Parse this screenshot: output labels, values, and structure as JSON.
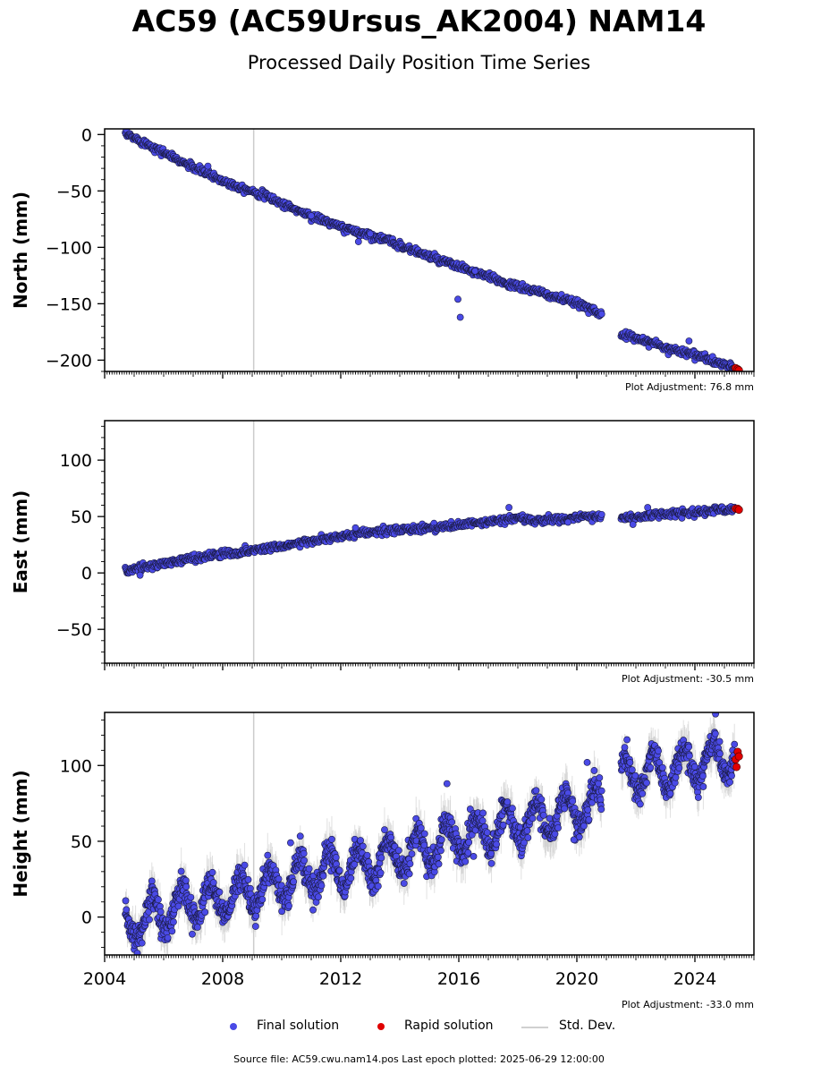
{
  "title": "AC59 (AC59Ursus_AK2004) NAM14",
  "subtitle": "Processed Daily Position Time Series",
  "legend": {
    "final": "Final solution",
    "rapid": "Rapid solution",
    "std": "Std. Dev."
  },
  "source_line": "Source file: AC59.cwu.nam14.pos  Last epoch plotted: 2025-06-29 12:00:00",
  "colors": {
    "final": "#4a4ae6",
    "rapid": "#e00000",
    "std": "#c8c8c8",
    "event_line": "#cccccc"
  },
  "chart_data": [
    {
      "type": "scatter",
      "ylabel": "North (mm)",
      "adjustment": "Plot Adjustment: 76.8 mm",
      "xlim": [
        2004.0,
        2026.0
      ],
      "ylim": [
        -210,
        5
      ],
      "yticks": [
        0,
        -50,
        -100,
        -150,
        -200
      ],
      "xticks": [
        2004,
        2008,
        2012,
        2016,
        2020,
        2024
      ],
      "show_xtick_labels": false,
      "event_lines": [
        2009.05
      ],
      "series": [
        {
          "name": "Final solution",
          "segments": [
            {
              "x": [
                2004.7,
                2005.0,
                2005.5,
                2006.0,
                2006.5,
                2007.0,
                2007.5,
                2008.0,
                2008.5,
                2009.0,
                2009.5,
                2010.0,
                2010.5,
                2011.0,
                2011.5,
                2012.0,
                2012.5,
                2013.0,
                2013.5,
                2014.0,
                2014.5,
                2015.0,
                2015.5,
                2016.0,
                2016.5,
                2017.0,
                2017.5,
                2018.0,
                2018.5,
                2019.0,
                2019.5,
                2020.0,
                2020.5,
                2020.85
              ],
              "y": [
                0,
                -3,
                -9,
                -16,
                -23,
                -29,
                -35,
                -41,
                -46,
                -50,
                -55,
                -61,
                -67,
                -72,
                -77,
                -82,
                -86,
                -89,
                -93,
                -98,
                -103,
                -108,
                -113,
                -117,
                -122,
                -126,
                -131,
                -135,
                -138,
                -142,
                -146,
                -150,
                -154,
                -160
              ]
            },
            {
              "x": [
                2021.5,
                2022.0,
                2022.5,
                2023.0,
                2023.5,
                2024.0,
                2024.5,
                2025.0,
                2025.35
              ],
              "y": [
                -178,
                -180,
                -184,
                -189,
                -192,
                -195,
                -200,
                -204,
                -207
              ]
            }
          ],
          "outliers": [
            [
              2015.97,
              -146
            ],
            [
              2016.05,
              -162
            ],
            [
              2016.55,
              -121
            ],
            [
              2013.0,
              -88
            ],
            [
              2012.6,
              -95
            ],
            [
              2023.8,
              -183
            ],
            [
              2007.5,
              -28
            ],
            [
              2011.0,
              -72
            ]
          ]
        },
        {
          "name": "Rapid solution",
          "x": [
            2025.38,
            2025.45,
            2025.49
          ],
          "y": [
            -207,
            -208,
            -209
          ]
        }
      ]
    },
    {
      "type": "scatter",
      "ylabel": "East (mm)",
      "adjustment": "Plot Adjustment: -30.5 mm",
      "xlim": [
        2004.0,
        2026.0
      ],
      "ylim": [
        -80,
        135
      ],
      "yticks": [
        100,
        50,
        0,
        -50
      ],
      "xticks": [
        2004,
        2008,
        2012,
        2016,
        2020,
        2024
      ],
      "show_xtick_labels": false,
      "event_lines": [
        2009.05
      ],
      "series": [
        {
          "name": "Final solution",
          "segments": [
            {
              "x": [
                2004.7,
                2005.0,
                2005.5,
                2006.0,
                2006.5,
                2007.0,
                2007.5,
                2008.0,
                2008.5,
                2009.0,
                2009.5,
                2010.0,
                2010.5,
                2011.0,
                2011.5,
                2012.0,
                2012.5,
                2013.0,
                2013.5,
                2014.0,
                2014.5,
                2015.0,
                2015.5,
                2016.0,
                2016.5,
                2017.0,
                2017.5,
                2018.0,
                2018.5,
                2019.0,
                2019.5,
                2020.0,
                2020.5,
                2020.85
              ],
              "y": [
                2,
                3,
                6,
                8,
                11,
                13,
                15,
                17,
                18,
                20,
                22,
                24,
                26,
                28,
                30,
                32,
                34,
                36,
                37,
                38,
                39,
                40,
                41,
                42,
                44,
                45,
                47,
                49,
                46,
                47,
                48,
                49,
                50,
                50
              ]
            },
            {
              "x": [
                2021.5,
                2022.0,
                2022.5,
                2023.0,
                2023.5,
                2024.0,
                2024.5,
                2025.0,
                2025.35
              ],
              "y": [
                49,
                49,
                51,
                52,
                53,
                54,
                55,
                56,
                57
              ]
            }
          ],
          "outliers": [
            [
              2017.7,
              58
            ],
            [
              2005.2,
              -2
            ],
            [
              2019.7,
              45
            ],
            [
              2022.4,
              58
            ],
            [
              2012.5,
              40
            ],
            [
              2021.9,
              43
            ]
          ]
        },
        {
          "name": "Rapid solution",
          "x": [
            2025.38,
            2025.45,
            2025.49
          ],
          "y": [
            57,
            57,
            56
          ]
        }
      ]
    },
    {
      "type": "scatter",
      "ylabel": "Height (mm)",
      "adjustment": "Plot Adjustment: -33.0 mm",
      "xlim": [
        2004.0,
        2026.0
      ],
      "ylim": [
        -25,
        135
      ],
      "yticks": [
        100,
        50,
        0
      ],
      "xticks": [
        2004,
        2008,
        2012,
        2016,
        2020,
        2024
      ],
      "show_xtick_labels": true,
      "event_lines": [
        2009.05
      ],
      "seasonal_amplitude": 12,
      "series": [
        {
          "name": "Final solution",
          "segments": [
            {
              "x": [
                2004.7,
                2005.5,
                2006.5,
                2007.5,
                2008.5,
                2009.5,
                2010.5,
                2011.5,
                2012.5,
                2013.5,
                2014.5,
                2015.5,
                2016.5,
                2017.5,
                2018.5,
                2019.5,
                2020.5,
                2020.85
              ],
              "y": [
                -5,
                0,
                7,
                11,
                14,
                20,
                26,
                30,
                33,
                38,
                44,
                49,
                54,
                59,
                63,
                68,
                73,
                76
              ]
            },
            {
              "x": [
                2021.5,
                2022.5,
                2023.5,
                2024.5,
                2025.35
              ],
              "y": [
                93,
                96,
                99,
                103,
                106
              ]
            }
          ],
          "outliers": [
            [
              2015.6,
              88
            ],
            [
              2020.35,
              102
            ],
            [
              2019.9,
              51
            ],
            [
              2016.5,
              40
            ],
            [
              2010.3,
              49
            ],
            [
              2024.7,
              134
            ],
            [
              2021.7,
              117
            ]
          ]
        },
        {
          "name": "Rapid solution",
          "x": [
            2025.38,
            2025.41,
            2025.45,
            2025.49
          ],
          "y": [
            104,
            99,
            109,
            106
          ]
        }
      ]
    }
  ]
}
